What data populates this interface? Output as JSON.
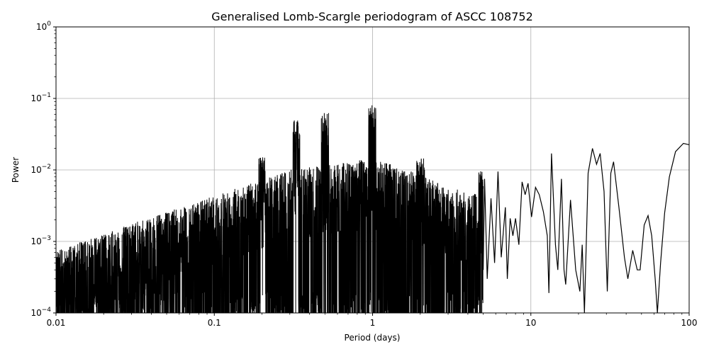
{
  "chart_data": {
    "type": "line",
    "title": "Generalised Lomb-Scargle periodogram of ASCC 108752",
    "xlabel": "Period (days)",
    "ylabel": "Power",
    "xscale": "log",
    "yscale": "log",
    "xlim": [
      0.01,
      100
    ],
    "ylim": [
      0.0001,
      1
    ],
    "grid": true,
    "line_color": "#000000",
    "x_ticks": [
      {
        "value": 0.01,
        "label": "0.01"
      },
      {
        "value": 0.1,
        "label": "0.1"
      },
      {
        "value": 1,
        "label": "1"
      },
      {
        "value": 10,
        "label": "10"
      },
      {
        "value": 100,
        "label": "100"
      }
    ],
    "y_ticks": [
      {
        "value": 0.0001,
        "base": "10",
        "exp": "−4"
      },
      {
        "value": 0.001,
        "base": "10",
        "exp": "−3"
      },
      {
        "value": 0.01,
        "base": "10",
        "exp": "−2"
      },
      {
        "value": 0.1,
        "base": "10",
        "exp": "−1"
      },
      {
        "value": 1,
        "base": "10",
        "exp": "0"
      }
    ],
    "notable_peaks": [
      {
        "x": 0.2,
        "y": 0.015
      },
      {
        "x": 0.33,
        "y": 0.05
      },
      {
        "x": 0.5,
        "y": 0.065
      },
      {
        "x": 1.0,
        "y": 0.08
      },
      {
        "x": 2.0,
        "y": 0.015
      },
      {
        "x": 5.0,
        "y": 0.01
      },
      {
        "x": 6.2,
        "y": 0.01
      },
      {
        "x": 13.5,
        "y": 0.017
      },
      {
        "x": 24.5,
        "y": 0.02
      },
      {
        "x": 33.0,
        "y": 0.013
      },
      {
        "x": 93.0,
        "y": 0.024
      }
    ],
    "envelope": [
      [
        0.01,
        0.0005
      ],
      [
        0.02,
        0.0009
      ],
      [
        0.05,
        0.0018
      ],
      [
        0.1,
        0.003
      ],
      [
        0.2,
        0.005
      ],
      [
        0.3,
        0.007
      ],
      [
        0.5,
        0.008
      ],
      [
        1.0,
        0.01
      ],
      [
        2.0,
        0.006
      ],
      [
        3.0,
        0.004
      ],
      [
        5.0,
        0.003
      ]
    ],
    "smooth_curve": [
      [
        5.0,
        0.0004
      ],
      [
        5.1,
        0.0075
      ],
      [
        5.3,
        0.0003
      ],
      [
        5.6,
        0.004
      ],
      [
        5.9,
        0.0005
      ],
      [
        6.2,
        0.0095
      ],
      [
        6.5,
        0.0006
      ],
      [
        6.9,
        0.003
      ],
      [
        7.1,
        0.0003
      ],
      [
        7.4,
        0.0021
      ],
      [
        7.7,
        0.0012
      ],
      [
        8.0,
        0.0021
      ],
      [
        8.4,
        0.0009
      ],
      [
        8.8,
        0.0068
      ],
      [
        9.2,
        0.0045
      ],
      [
        9.6,
        0.0065
      ],
      [
        10.1,
        0.0022
      ],
      [
        10.7,
        0.0057
      ],
      [
        11.3,
        0.0045
      ],
      [
        12.0,
        0.0026
      ],
      [
        12.7,
        0.0012
      ],
      [
        13.0,
        0.00019
      ],
      [
        13.5,
        0.017
      ],
      [
        14.3,
        0.0009
      ],
      [
        14.8,
        0.0004
      ],
      [
        15.6,
        0.0075
      ],
      [
        16.2,
        0.0004
      ],
      [
        16.6,
        0.00025
      ],
      [
        17.8,
        0.0038
      ],
      [
        19.2,
        0.0004
      ],
      [
        20.4,
        0.0002
      ],
      [
        21.1,
        0.0009
      ],
      [
        21.8,
        0.0001
      ],
      [
        23.0,
        0.009
      ],
      [
        24.5,
        0.02
      ],
      [
        26.0,
        0.012
      ],
      [
        27.4,
        0.017
      ],
      [
        29.0,
        0.005
      ],
      [
        30.4,
        0.0002
      ],
      [
        32.0,
        0.009
      ],
      [
        33.3,
        0.013
      ],
      [
        36.0,
        0.003
      ],
      [
        39.0,
        0.0006
      ],
      [
        41.0,
        0.0003
      ],
      [
        44.0,
        0.00075
      ],
      [
        47.0,
        0.0004
      ],
      [
        49.0,
        0.0004
      ],
      [
        52.0,
        0.0017
      ],
      [
        55.0,
        0.0023
      ],
      [
        58.0,
        0.0012
      ],
      [
        61.0,
        0.0003
      ],
      [
        63.0,
        0.0001
      ],
      [
        66.0,
        0.0005
      ],
      [
        70.0,
        0.0025
      ],
      [
        75.0,
        0.008
      ],
      [
        82.0,
        0.018
      ],
      [
        92.0,
        0.0235
      ],
      [
        100.0,
        0.0225
      ]
    ]
  }
}
